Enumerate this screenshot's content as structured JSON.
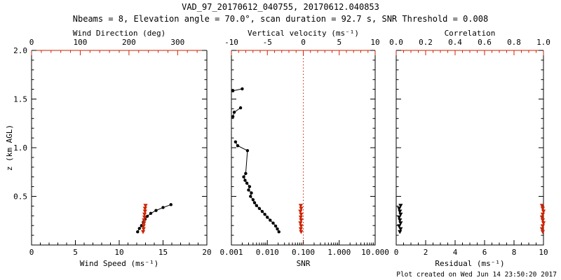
{
  "title": "VAD_97_20170612_040755, 20170612.040853",
  "subtitle": "Nbeams = 8, Elevation angle = 70.0°, scan duration = 92.7 s, SNR Threshold = 0.008",
  "footer": "Plot created on Wed Jun 14 23:50:20 2017",
  "colors": {
    "accent_red": "#cc2200",
    "black": "#000000"
  },
  "chart_data": [
    {
      "type": "scatter",
      "name": "wind-panel",
      "xlabel": "Wind Speed (ms⁻¹)",
      "ylabel": "z (km AGL)",
      "top_label": "Wind Direction (deg)",
      "x_bottom": {
        "scale": "linear",
        "range": [
          0,
          20
        ],
        "ticks": [
          0,
          5,
          10,
          15,
          20
        ],
        "tick_labels": [
          "0",
          "5",
          "10",
          "15",
          "20"
        ],
        "minor_step": 1
      },
      "x_top": {
        "scale": "linear",
        "range": [
          0,
          360
        ],
        "ticks": [
          0,
          100,
          200,
          300
        ],
        "tick_labels": [
          "0",
          "100",
          "200",
          "300"
        ],
        "minor_step": 20
      },
      "y": {
        "range": [
          0,
          2
        ],
        "ticks": [
          0.5,
          1.0,
          1.5,
          2.0
        ],
        "tick_labels": [
          "0.5",
          "1.0",
          "1.5",
          "2.0"
        ],
        "minor_step": 0.1,
        "show_labels": true
      },
      "series": [
        {
          "name": "wind-speed",
          "axis": "bottom",
          "color": "black",
          "marker": "circle",
          "line": true,
          "points": [
            [
              12.1,
              0.135
            ],
            [
              12.3,
              0.17
            ],
            [
              12.55,
              0.2
            ],
            [
              12.75,
              0.235
            ],
            [
              12.95,
              0.265
            ],
            [
              13.2,
              0.295
            ],
            [
              13.6,
              0.325
            ],
            [
              14.2,
              0.355
            ],
            [
              15.0,
              0.385
            ],
            [
              15.9,
              0.415
            ]
          ]
        },
        {
          "name": "wind-direction",
          "axis": "top",
          "color": "red",
          "marker": "triangle",
          "line": false,
          "points": [
            [
              229,
              0.135
            ],
            [
              230,
              0.165
            ],
            [
              230,
              0.195
            ],
            [
              231,
              0.225
            ],
            [
              231,
              0.255
            ],
            [
              232,
              0.285
            ],
            [
              232,
              0.315
            ],
            [
              233,
              0.345
            ],
            [
              233,
              0.375
            ],
            [
              234,
              0.405
            ]
          ]
        }
      ]
    },
    {
      "type": "scatter",
      "name": "snr-panel",
      "xlabel": "SNR",
      "ylabel": "",
      "top_label": "Vertical velocity (ms⁻¹)",
      "x_bottom": {
        "scale": "log",
        "range": [
          0.001,
          10
        ],
        "ticks": [
          0.001,
          0.01,
          0.1,
          1,
          10
        ],
        "tick_labels": [
          "0.001",
          "0.010",
          "0.100",
          "1.000",
          "10.000"
        ]
      },
      "x_top": {
        "scale": "linear",
        "range": [
          -10,
          10
        ],
        "ticks": [
          -10,
          -5,
          0,
          5,
          10
        ],
        "tick_labels": [
          "-10",
          "-5",
          "0",
          "5",
          "10"
        ],
        "minor_step": 1
      },
      "y": {
        "range": [
          0,
          2
        ],
        "ticks": [
          0.5,
          1.0,
          1.5,
          2.0
        ],
        "tick_labels": [],
        "minor_step": 0.1,
        "show_labels": false
      },
      "ref_line": {
        "axis": "top",
        "value": 0,
        "color": "red",
        "style": "dotted"
      },
      "series": [
        {
          "name": "snr",
          "axis": "bottom",
          "color": "black",
          "marker": "circle",
          "line": true,
          "points": [
            [
              0.021,
              0.135
            ],
            [
              0.019,
              0.165
            ],
            [
              0.017,
              0.195
            ],
            [
              0.0145,
              0.225
            ],
            [
              0.012,
              0.255
            ],
            [
              0.01,
              0.285
            ],
            [
              0.0085,
              0.315
            ],
            [
              0.0072,
              0.345
            ],
            [
              0.006,
              0.375
            ],
            [
              0.005,
              0.405
            ],
            [
              0.0044,
              0.435
            ],
            [
              0.004,
              0.465
            ],
            [
              0.0034,
              0.5
            ],
            [
              0.0036,
              0.535
            ],
            [
              0.003,
              0.565
            ],
            [
              0.0032,
              0.6
            ],
            [
              0.0027,
              0.635
            ],
            [
              0.0024,
              0.665
            ],
            [
              0.0022,
              0.7
            ],
            [
              0.0025,
              0.735
            ],
            [
              0.0028,
              0.97
            ],
            [
              0.0015,
              1.02
            ],
            [
              0.0013,
              1.06
            ],
            null,
            [
              0.0011,
              1.32
            ],
            [
              0.0012,
              1.365
            ],
            [
              0.0018,
              1.41
            ],
            null,
            [
              0.0011,
              1.585
            ],
            [
              0.002,
              1.605
            ]
          ]
        },
        {
          "name": "vertical-velocity",
          "axis": "top",
          "color": "red",
          "marker": "triangle",
          "line": false,
          "points": [
            [
              -0.3,
              0.135
            ],
            [
              -0.35,
              0.165
            ],
            [
              -0.3,
              0.195
            ],
            [
              -0.4,
              0.225
            ],
            [
              -0.3,
              0.255
            ],
            [
              -0.35,
              0.285
            ],
            [
              -0.3,
              0.315
            ],
            [
              -0.4,
              0.345
            ],
            [
              -0.3,
              0.375
            ],
            [
              -0.35,
              0.405
            ]
          ]
        }
      ]
    },
    {
      "type": "scatter",
      "name": "residual-panel",
      "xlabel": "Residual (ms⁻¹)",
      "ylabel": "",
      "top_label": "Correlation",
      "x_bottom": {
        "scale": "linear",
        "range": [
          0,
          10
        ],
        "ticks": [
          0,
          2,
          4,
          6,
          8,
          10
        ],
        "tick_labels": [
          "0",
          "2",
          "4",
          "6",
          "8",
          "10"
        ],
        "minor_step": 0.5
      },
      "x_top": {
        "scale": "linear",
        "range": [
          0,
          1
        ],
        "ticks": [
          0,
          0.2,
          0.4,
          0.6,
          0.8,
          1.0
        ],
        "tick_labels": [
          "0.0",
          "0.2",
          "0.4",
          "0.6",
          "0.8",
          "1.0"
        ],
        "minor_step": 0.05
      },
      "y": {
        "range": [
          0,
          2
        ],
        "ticks": [
          0.5,
          1.0,
          1.5,
          2.0
        ],
        "tick_labels": [],
        "minor_step": 0.1,
        "show_labels": false
      },
      "series": [
        {
          "name": "residual",
          "axis": "bottom",
          "color": "black",
          "marker": "triangle",
          "line": true,
          "points": [
            [
              0.25,
              0.135
            ],
            [
              0.3,
              0.165
            ],
            [
              0.2,
              0.195
            ],
            [
              0.3,
              0.225
            ],
            [
              0.25,
              0.255
            ],
            [
              0.2,
              0.285
            ],
            [
              0.3,
              0.315
            ],
            [
              0.25,
              0.345
            ],
            [
              0.2,
              0.375
            ],
            [
              0.3,
              0.405
            ]
          ]
        },
        {
          "name": "correlation",
          "axis": "top",
          "color": "red",
          "marker": "triangle",
          "line": false,
          "points": [
            [
              0.995,
              0.135
            ],
            [
              0.99,
              0.165
            ],
            [
              0.995,
              0.195
            ],
            [
              1.0,
              0.225
            ],
            [
              0.995,
              0.255
            ],
            [
              0.99,
              0.285
            ],
            [
              0.995,
              0.315
            ],
            [
              1.0,
              0.345
            ],
            [
              0.995,
              0.375
            ],
            [
              0.99,
              0.405
            ]
          ]
        }
      ]
    }
  ]
}
